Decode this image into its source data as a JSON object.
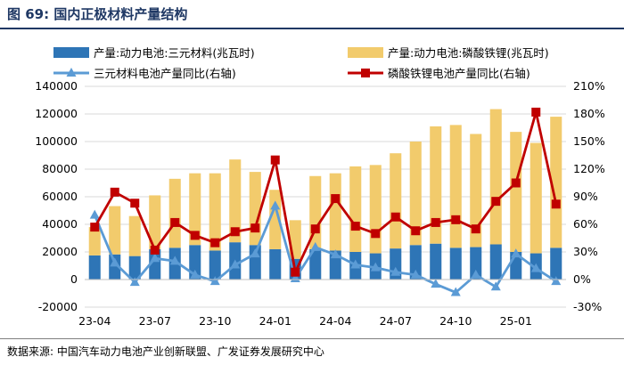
{
  "header": {
    "title": "图 69:  国内正极材料产量结构"
  },
  "footer": {
    "source": "数据来源:  中国汽车动力电池产业创新联盟、广发证券发展研究中心"
  },
  "colors": {
    "ncm_bar": "#2e75b6",
    "lfp_bar": "#f2cb6c",
    "ncm_line": "#5b9bd5",
    "lfp_line": "#c00000",
    "grid": "#d9d9d9",
    "title": "#1f3864"
  },
  "chart_data": {
    "type": "bar",
    "stacked": true,
    "title": "国内正极材料产量结构",
    "categories": [
      "2023-04",
      "2023-05",
      "2023-06",
      "2023-07",
      "2023-08",
      "2023-09",
      "2023-10",
      "2023-11",
      "2023-12",
      "2024-01",
      "2024-02",
      "2024-03",
      "2024-04",
      "2024-05",
      "2024-06",
      "2024-07",
      "2024-08",
      "2024-09",
      "2024-10",
      "2024-11",
      "2024-12",
      "2025-01",
      "2025-02",
      "2025-03"
    ],
    "x_tick_labels": [
      "23-04",
      "23-07",
      "23-10",
      "24-01",
      "24-04",
      "24-07",
      "24-10",
      "25-01"
    ],
    "x_tick_every": 3,
    "y_left": {
      "ylim": [
        -20000,
        140000
      ],
      "ticks": [
        -20000,
        0,
        20000,
        40000,
        60000,
        80000,
        100000,
        120000,
        140000
      ],
      "tick_labels": [
        "-20000",
        "0",
        "20000",
        "40000",
        "60000",
        "80000",
        "100000",
        "120000",
        "140000"
      ]
    },
    "y_right": {
      "ylim": [
        -30,
        210
      ],
      "ticks": [
        -30,
        0,
        30,
        60,
        90,
        120,
        150,
        180,
        210
      ],
      "tick_labels": [
        "-30%",
        "0%",
        "30%",
        "60%",
        "90%",
        "120%",
        "150%",
        "180%",
        "210%"
      ]
    },
    "series": [
      {
        "name": "产量:动力电池:三元材料(兆瓦时)",
        "kind": "bar",
        "axis": "left",
        "values": [
          17500,
          18200,
          17000,
          22000,
          23000,
          25000,
          21000,
          27000,
          25000,
          22000,
          15000,
          22000,
          21000,
          20000,
          19000,
          22500,
          25000,
          26000,
          23000,
          23500,
          25500,
          20000,
          19000,
          23000
        ]
      },
      {
        "name": "产量:动力电池:磷酸铁锂(兆瓦时)",
        "kind": "bar",
        "axis": "left",
        "values": [
          20500,
          35000,
          29000,
          39000,
          50000,
          52000,
          56000,
          60000,
          53000,
          43000,
          28000,
          53000,
          56000,
          62000,
          64000,
          69000,
          75000,
          85000,
          89000,
          82000,
          98000,
          87000,
          80000,
          95000
        ]
      },
      {
        "name": "三元材料电池产量同比(右轴)",
        "kind": "line",
        "axis": "right",
        "values": [
          70,
          18,
          -3,
          23,
          20,
          5,
          -2,
          16,
          28,
          80,
          1,
          35,
          27,
          16,
          13,
          8,
          5,
          -5,
          -14,
          5,
          -8,
          28,
          12,
          -2
        ]
      },
      {
        "name": "磷酸铁锂电池产量同比(右轴)",
        "kind": "line",
        "axis": "right",
        "values": [
          57,
          95,
          83,
          32,
          62,
          48,
          40,
          52,
          56,
          130,
          8,
          55,
          88,
          58,
          50,
          68,
          53,
          62,
          65,
          55,
          85,
          105,
          182,
          82
        ]
      }
    ],
    "legend_position": "top"
  }
}
